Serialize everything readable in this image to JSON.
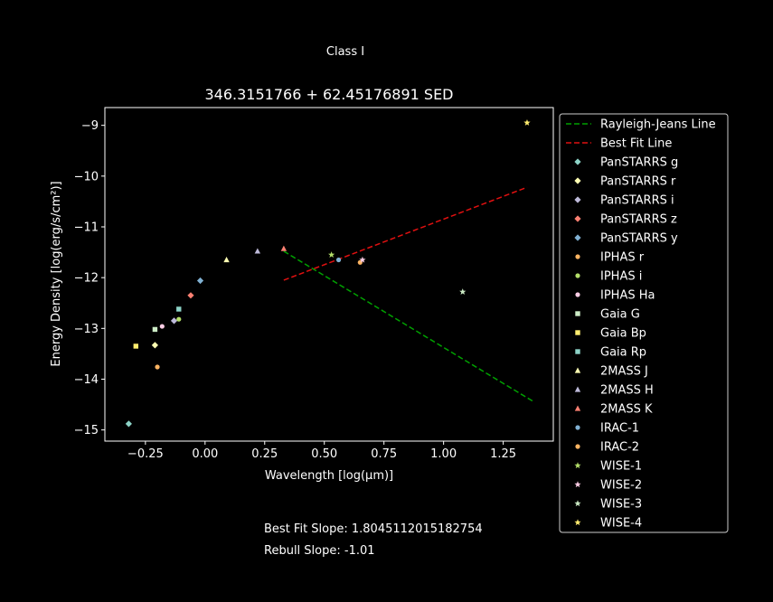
{
  "figure": {
    "suptitle": "Class I",
    "best_fit_text": "Best Fit Slope: 1.8045112015182754",
    "rebull_text": "Rebull Slope: -1.01"
  },
  "chart_data": {
    "type": "scatter",
    "title": "346.3151766 + 62.45176891 SED",
    "xlabel": "Wavelength [log(μm)]",
    "ylabel": "Energy Density [log(erg/s/cm²)]",
    "xlim": [
      -0.42,
      1.46
    ],
    "ylim": [
      -15.22,
      -8.65
    ],
    "xticks": [
      -0.25,
      0.0,
      0.25,
      0.5,
      0.75,
      1.0,
      1.25
    ],
    "xtick_labels": [
      "−0.25",
      "0.00",
      "0.25",
      "0.50",
      "0.75",
      "1.00",
      "1.25"
    ],
    "yticks": [
      -15,
      -14,
      -13,
      -12,
      -11,
      -10,
      -9
    ],
    "ytick_labels": [
      "−15",
      "−14",
      "−13",
      "−12",
      "−11",
      "−10",
      "−9"
    ],
    "grid": false,
    "legend_position": "outside-right",
    "lines": [
      {
        "name": "Rayleigh-Jeans Line",
        "color": "#00a000",
        "dash": "6,3",
        "x": [
          0.33,
          1.38
        ],
        "y": [
          -11.48,
          -14.45
        ]
      },
      {
        "name": "Best Fit Line",
        "color": "#e01010",
        "dash": "6,3",
        "x": [
          0.33,
          1.35
        ],
        "y": [
          -12.05,
          -10.22
        ]
      }
    ],
    "series": [
      {
        "name": "PanSTARRS g",
        "marker": "diamond",
        "color": "#8dd3c7",
        "points": [
          [
            -0.32,
            -14.88
          ]
        ]
      },
      {
        "name": "PanSTARRS r",
        "marker": "diamond",
        "color": "#ffffb3",
        "points": [
          [
            -0.21,
            -13.33
          ]
        ]
      },
      {
        "name": "PanSTARRS i",
        "marker": "diamond",
        "color": "#bebada",
        "points": [
          [
            -0.13,
            -12.85
          ]
        ]
      },
      {
        "name": "PanSTARRS z",
        "marker": "diamond",
        "color": "#fb8072",
        "points": [
          [
            -0.06,
            -12.35
          ]
        ]
      },
      {
        "name": "PanSTARRS y",
        "marker": "diamond",
        "color": "#80b1d3",
        "points": [
          [
            -0.02,
            -12.06
          ]
        ]
      },
      {
        "name": "IPHAS r",
        "marker": "circle",
        "color": "#fdb462",
        "points": [
          [
            -0.2,
            -13.76
          ]
        ]
      },
      {
        "name": "IPHAS i",
        "marker": "circle",
        "color": "#b3de69",
        "points": [
          [
            -0.11,
            -12.82
          ]
        ]
      },
      {
        "name": "IPHAS Ha",
        "marker": "circle",
        "color": "#fccde5",
        "points": [
          [
            -0.18,
            -12.96
          ]
        ]
      },
      {
        "name": "Gaia G",
        "marker": "square",
        "color": "#ccebc5",
        "points": [
          [
            -0.21,
            -13.02
          ]
        ]
      },
      {
        "name": "Gaia Bp",
        "marker": "square",
        "color": "#ffed6f",
        "points": [
          [
            -0.29,
            -13.35
          ]
        ]
      },
      {
        "name": "Gaia Rp",
        "marker": "square",
        "color": "#8dd3c7",
        "points": [
          [
            -0.11,
            -12.62
          ]
        ]
      },
      {
        "name": "2MASS J",
        "marker": "triangle",
        "color": "#ffffb3",
        "points": [
          [
            0.09,
            -11.65
          ]
        ]
      },
      {
        "name": "2MASS H",
        "marker": "triangle",
        "color": "#bebada",
        "points": [
          [
            0.22,
            -11.48
          ]
        ]
      },
      {
        "name": "2MASS K",
        "marker": "triangle",
        "color": "#fb8072",
        "points": [
          [
            0.33,
            -11.43
          ]
        ]
      },
      {
        "name": "IRAC-1",
        "marker": "circle",
        "color": "#80b1d3",
        "points": [
          [
            0.56,
            -11.65
          ]
        ]
      },
      {
        "name": "IRAC-2",
        "marker": "circle",
        "color": "#fdb462",
        "points": [
          [
            0.65,
            -11.7
          ]
        ]
      },
      {
        "name": "WISE-1",
        "marker": "star",
        "color": "#b3de69",
        "points": [
          [
            0.53,
            -11.55
          ]
        ]
      },
      {
        "name": "WISE-2",
        "marker": "star",
        "color": "#fccde5",
        "points": [
          [
            0.66,
            -11.65
          ]
        ]
      },
      {
        "name": "WISE-3",
        "marker": "star",
        "color": "#ccebc5",
        "points": [
          [
            1.08,
            -12.28
          ]
        ]
      },
      {
        "name": "WISE-4",
        "marker": "star",
        "color": "#ffed6f",
        "points": [
          [
            1.35,
            -8.95
          ]
        ]
      }
    ]
  }
}
